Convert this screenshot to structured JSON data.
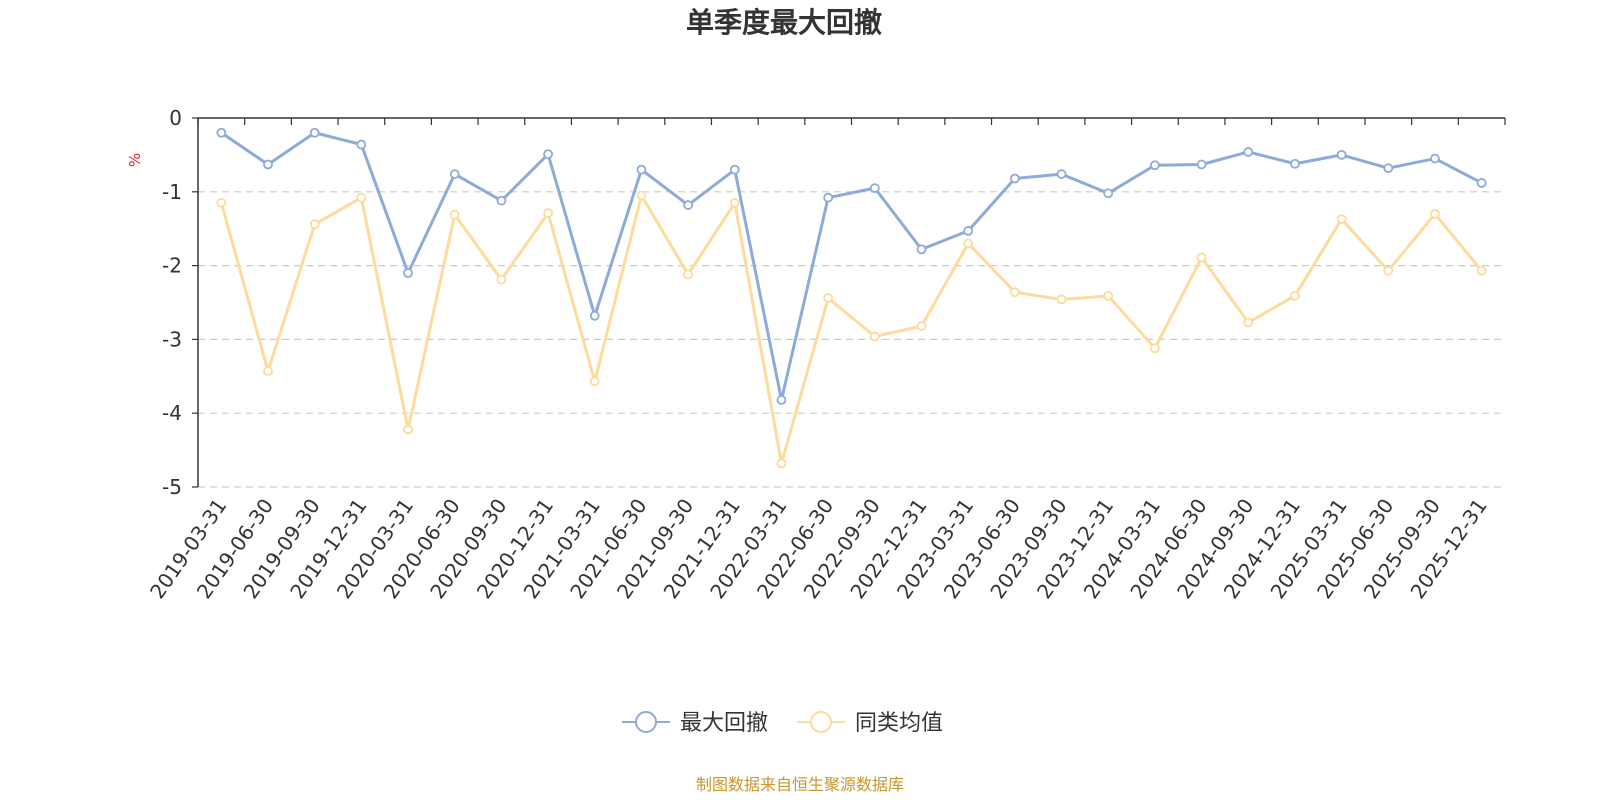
{
  "chart_data": {
    "type": "line",
    "title": "单季度最大回撤",
    "ylabel": "%",
    "ylim": [
      -5,
      0
    ],
    "yticks": [
      0,
      -1,
      -2,
      -3,
      -4,
      -5
    ],
    "grid": true,
    "legend_position": "bottom-center",
    "categories": [
      "2019-03-31",
      "2019-06-30",
      "2019-09-30",
      "2019-12-31",
      "2020-03-31",
      "2020-06-30",
      "2020-09-30",
      "2020-12-31",
      "2021-03-31",
      "2021-06-30",
      "2021-09-30",
      "2021-12-31",
      "2022-03-31",
      "2022-06-30",
      "2022-09-30",
      "2022-12-31",
      "2023-03-31",
      "2023-06-30",
      "2023-09-30",
      "2023-12-31",
      "2024-03-31",
      "2024-06-30",
      "2024-09-30",
      "2024-12-31",
      "2025-03-31",
      "2025-06-30",
      "2025-09-30",
      "2025-12-31"
    ],
    "series": [
      {
        "name": "最大回撤",
        "color": "#8eaad8",
        "values": [
          -0.2,
          -0.63,
          -0.2,
          -0.36,
          -2.1,
          -0.76,
          -1.12,
          -0.49,
          -2.68,
          -0.7,
          -1.18,
          -0.7,
          -3.82,
          -1.08,
          -0.95,
          -1.78,
          -1.53,
          -0.82,
          -0.76,
          -1.02,
          -0.64,
          -0.63,
          -0.46,
          -0.62,
          -0.5,
          -0.68,
          -0.55,
          -0.88
        ]
      },
      {
        "name": "同类均值",
        "color": "#fcdb9c",
        "values": [
          -1.15,
          -3.43,
          -1.44,
          -1.08,
          -4.22,
          -1.31,
          -2.19,
          -1.29,
          -3.57,
          -1.05,
          -2.12,
          -1.15,
          -4.68,
          -2.44,
          -2.96,
          -2.82,
          -1.7,
          -2.36,
          -2.46,
          -2.41,
          -3.12,
          -1.89,
          -2.77,
          -2.41,
          -1.37,
          -2.07,
          -1.3,
          -2.07
        ]
      }
    ],
    "source_note": "制图数据来自恒生聚源数据库"
  },
  "colors": {
    "axis": "#333333",
    "grid": "#cccccc",
    "unit": "#e02020",
    "source": "#c8962c"
  }
}
